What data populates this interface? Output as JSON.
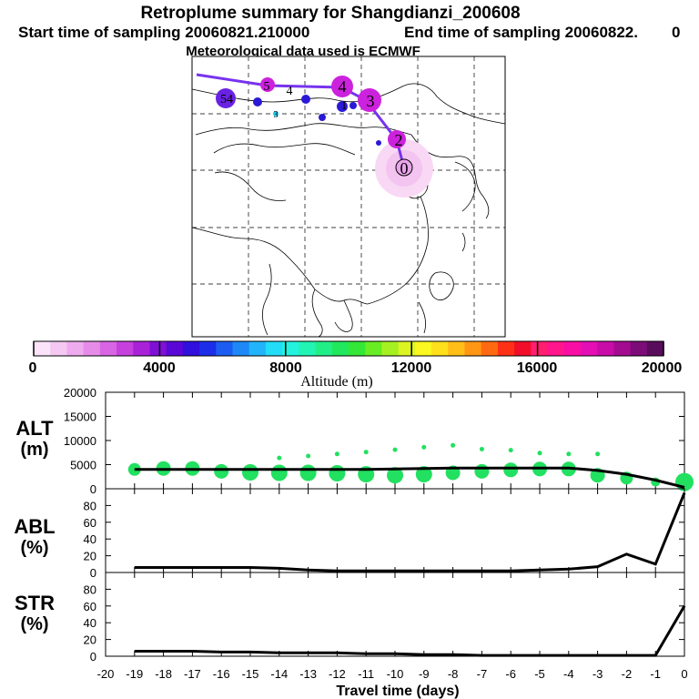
{
  "header": {
    "title": "Retroplume summary for Shangdianzi_200608",
    "start_label": "Start time of sampling 20060821.210000",
    "end_label": "End time of sampling 20060822.",
    "end_suffix": "0",
    "met_label": "Meteorological data used is ECMWF"
  },
  "map": {
    "trajectory_labels": [
      "0",
      "2",
      "3",
      "4",
      "5",
      "4",
      "1",
      "54",
      "3"
    ],
    "colors": {
      "trajectory": "#7733ee",
      "source_glow": "#f8d8f4",
      "marker_magenta": "#cc22dd",
      "marker_blue": "#2222cc"
    }
  },
  "colorbar": {
    "axis_label": "Altitude (m)",
    "tick_labels": [
      "0",
      "4000",
      "8000",
      "12000",
      "16000",
      "20000"
    ],
    "colors": [
      "#fbe4fa",
      "#f4c8f2",
      "#eeabee",
      "#e68ce8",
      "#d865e4",
      "#c640de",
      "#aa22d8",
      "#7f10d6",
      "#5a08d8",
      "#3010dc",
      "#1c2ee8",
      "#1d5cf0",
      "#1e88f6",
      "#22b4fb",
      "#22dcf8",
      "#22f2de",
      "#22f4b4",
      "#22ee88",
      "#20e85c",
      "#34e636",
      "#68ec22",
      "#a6f022",
      "#dcf422",
      "#fbf720",
      "#ffe01c",
      "#ffbe18",
      "#ff9614",
      "#ff6a10",
      "#ff3016",
      "#f20e28",
      "#ff1e70",
      "#ff158c",
      "#f80ea4",
      "#e40eb4",
      "#c80ca8",
      "#a40c90",
      "#7c0c78",
      "#5a0c5c"
    ]
  },
  "chart_data": [
    {
      "type": "line+bubble",
      "ylabel": "ALT\n(m)",
      "ylabel_lines": [
        "ALT",
        "(m)"
      ],
      "ylim": [
        0,
        20000
      ],
      "yticks": [
        0,
        5000,
        10000,
        15000,
        20000
      ],
      "x": [
        -19,
        -18,
        -17,
        -16,
        -15,
        -14,
        -13,
        -12,
        -11,
        -10,
        -9,
        -8,
        -7,
        -6,
        -5,
        -4,
        -3,
        -2,
        -1,
        0
      ],
      "series": [
        {
          "name": "mean altitude",
          "values": [
            4000,
            4000,
            4000,
            4000,
            4000,
            4000,
            4000,
            4000,
            4000,
            4100,
            4200,
            4300,
            4300,
            4300,
            4300,
            4300,
            3800,
            3000,
            1800,
            300
          ]
        },
        {
          "name": "altitude spread (mid)",
          "values": [
            4000,
            4200,
            4200,
            3600,
            3400,
            3300,
            3300,
            3200,
            3000,
            2800,
            3000,
            3300,
            3600,
            3900,
            4100,
            4100,
            2800,
            2200,
            1400,
            1400
          ]
        },
        {
          "name": "altitude spread (upper)",
          "values": [
            null,
            null,
            null,
            null,
            null,
            6400,
            6800,
            7200,
            7600,
            8100,
            8600,
            9000,
            8200,
            8000,
            7400,
            7200,
            7200,
            null,
            null,
            null
          ]
        }
      ]
    },
    {
      "type": "line",
      "ylabel": "ABL\n(%)",
      "ylabel_lines": [
        "ABL",
        "(%)"
      ],
      "ylim": [
        0,
        100
      ],
      "yticks": [
        0,
        20,
        40,
        60,
        80
      ],
      "x": [
        -19,
        -18,
        -17,
        -16,
        -15,
        -14,
        -13,
        -12,
        -11,
        -10,
        -9,
        -8,
        -7,
        -6,
        -5,
        -4,
        -3,
        -2,
        -1,
        0
      ],
      "values": [
        6,
        6,
        6,
        6,
        6,
        5,
        3,
        2,
        2,
        2,
        2,
        2,
        2,
        2,
        3,
        4,
        7,
        22,
        10,
        95
      ]
    },
    {
      "type": "line",
      "ylabel": "STR\n(%)",
      "ylabel_lines": [
        "STR",
        "(%)"
      ],
      "ylim": [
        0,
        100
      ],
      "yticks": [
        0,
        20,
        40,
        60,
        80
      ],
      "xlabel": "Travel time (days)",
      "xlim": [
        -20,
        0
      ],
      "xticks": [
        -20,
        -19,
        -18,
        -17,
        -16,
        -15,
        -14,
        -13,
        -12,
        -11,
        -10,
        -9,
        -8,
        -7,
        -6,
        -5,
        -4,
        -3,
        -2,
        -1,
        0
      ],
      "x": [
        -19,
        -18,
        -17,
        -16,
        -15,
        -14,
        -13,
        -12,
        -11,
        -10,
        -9,
        -8,
        -7,
        -6,
        -5,
        -4,
        -3,
        -2,
        -1,
        0
      ],
      "values": [
        6,
        6,
        6,
        5,
        5,
        4,
        4,
        4,
        3,
        3,
        2,
        2,
        1,
        1,
        1,
        1,
        1,
        1,
        1,
        60
      ]
    }
  ]
}
